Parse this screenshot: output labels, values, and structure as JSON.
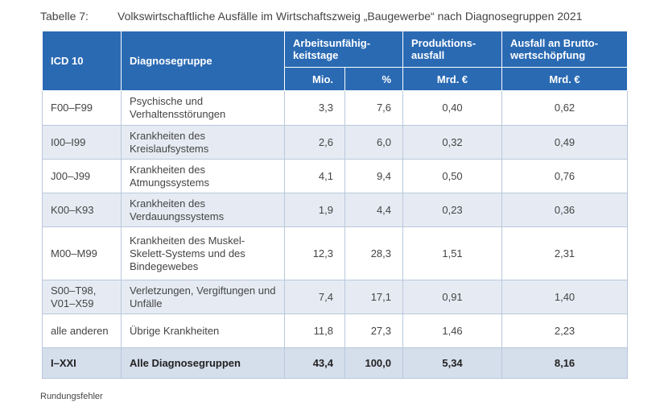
{
  "caption": {
    "label": "Tabelle 7:",
    "title": "Volkswirtschaftliche Ausfälle im Wirtschaftszweig „Baugewerbe“ nach Diagnosegruppen 2021"
  },
  "header": {
    "icd": "ICD 10",
    "group": "Diagnosegruppe",
    "au": "Arbeitsunfähig-keitstage",
    "prod": "Produktions-ausfall",
    "brutto": "Ausfall an Brutto-wertschöpfung",
    "mio": "Mio.",
    "pct": "%",
    "mrd1": "Mrd. €",
    "mrd2": "Mrd. €"
  },
  "rows": [
    {
      "icd": "F00–F99",
      "group": "Psychische und Verhaltensstörungen",
      "mio": "3,3",
      "pct": "7,6",
      "prod": "0,40",
      "brutto": "0,62"
    },
    {
      "icd": "I00–I99",
      "group": "Krankheiten des Kreislaufsystems",
      "mio": "2,6",
      "pct": "6,0",
      "prod": "0,32",
      "brutto": "0,49"
    },
    {
      "icd": "J00–J99",
      "group": "Krankheiten des Atmungssystems",
      "mio": "4,1",
      "pct": "9,4",
      "prod": "0,50",
      "brutto": "0,76"
    },
    {
      "icd": "K00–K93",
      "group": "Krankheiten des Verdauungssystems",
      "mio": "1,9",
      "pct": "4,4",
      "prod": "0,23",
      "brutto": "0,36"
    },
    {
      "icd": "M00–M99",
      "group": "Krankheiten des Muskel-Skelett-Systems und des Bindegewebes",
      "mio": "12,3",
      "pct": "28,3",
      "prod": "1,51",
      "brutto": "2,31"
    },
    {
      "icd": "S00–T98, V01–X59",
      "group": "Verletzungen, Vergiftungen und Unfälle",
      "mio": "7,4",
      "pct": "17,1",
      "prod": "0,91",
      "brutto": "1,40"
    },
    {
      "icd": "alle anderen",
      "group": "Übrige Krankheiten",
      "mio": "11,8",
      "pct": "27,3",
      "prod": "1,46",
      "brutto": "2,23"
    }
  ],
  "total": {
    "icd": "I–XXI",
    "group": "Alle Diagnosegruppen",
    "mio": "43,4",
    "pct": "100,0",
    "prod": "5,34",
    "brutto": "8,16"
  },
  "footnote": "Rundungsfehler"
}
